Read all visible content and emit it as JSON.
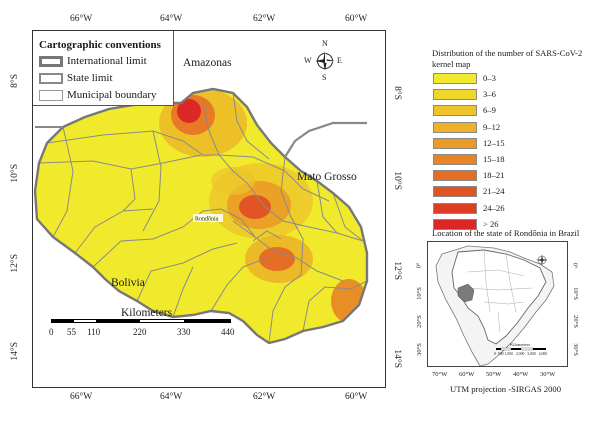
{
  "main_map": {
    "longitude_ticks": [
      "66°W",
      "64°W",
      "62°W",
      "60°W"
    ],
    "latitude_ticks": [
      "8°S",
      "10°S",
      "12°S",
      "14°S"
    ],
    "labels": {
      "amazonas": "Amazonas",
      "mato_grosso": "Mato Grosso",
      "bolivia": "Bolivia",
      "rondonia": "Rondônia"
    },
    "compass": {
      "n": "N",
      "s": "S",
      "e": "E",
      "w": "W"
    },
    "scale_bar": {
      "title": "Kilometers",
      "values": [
        "0",
        "55",
        "110",
        "220",
        "330",
        "440"
      ]
    }
  },
  "conventions": {
    "title": "Cartographic conventions",
    "items": [
      {
        "label": "International limit",
        "style": "international"
      },
      {
        "label": "State limit",
        "style": "state"
      },
      {
        "label": "Municipal boundary",
        "style": "municipal"
      }
    ]
  },
  "legend": {
    "title_line1": "Distribution of the number of SARS-CoV-2",
    "title_line2": "kernel map",
    "items": [
      {
        "label": "0–3",
        "color": "#f1ea2c"
      },
      {
        "label": "3–6",
        "color": "#efd72a"
      },
      {
        "label": "6–9",
        "color": "#edc429"
      },
      {
        "label": "9–12",
        "color": "#ecb127"
      },
      {
        "label": "12–15",
        "color": "#ea9b26"
      },
      {
        "label": "15–18",
        "color": "#e88425"
      },
      {
        "label": "18–21",
        "color": "#e56d24"
      },
      {
        "label": "21–24",
        "color": "#e25424"
      },
      {
        "label": "24–26",
        "color": "#df3c25"
      },
      {
        "label": "> 26",
        "color": "#dc2727"
      }
    ]
  },
  "inset": {
    "title": "Location of the state of Rondônia in Brazil",
    "longitude_ticks": [
      "70°W",
      "60°W",
      "50°W",
      "40°W",
      "30°W"
    ],
    "latitude_ticks": [
      "0°",
      "10°S",
      "20°S",
      "30°S"
    ],
    "caption": "UTM projection -SIRGAS 2000",
    "scale_text": "Kilometers",
    "scale_values": "0  500 1,000   2,000   3,000   4,000"
  }
}
